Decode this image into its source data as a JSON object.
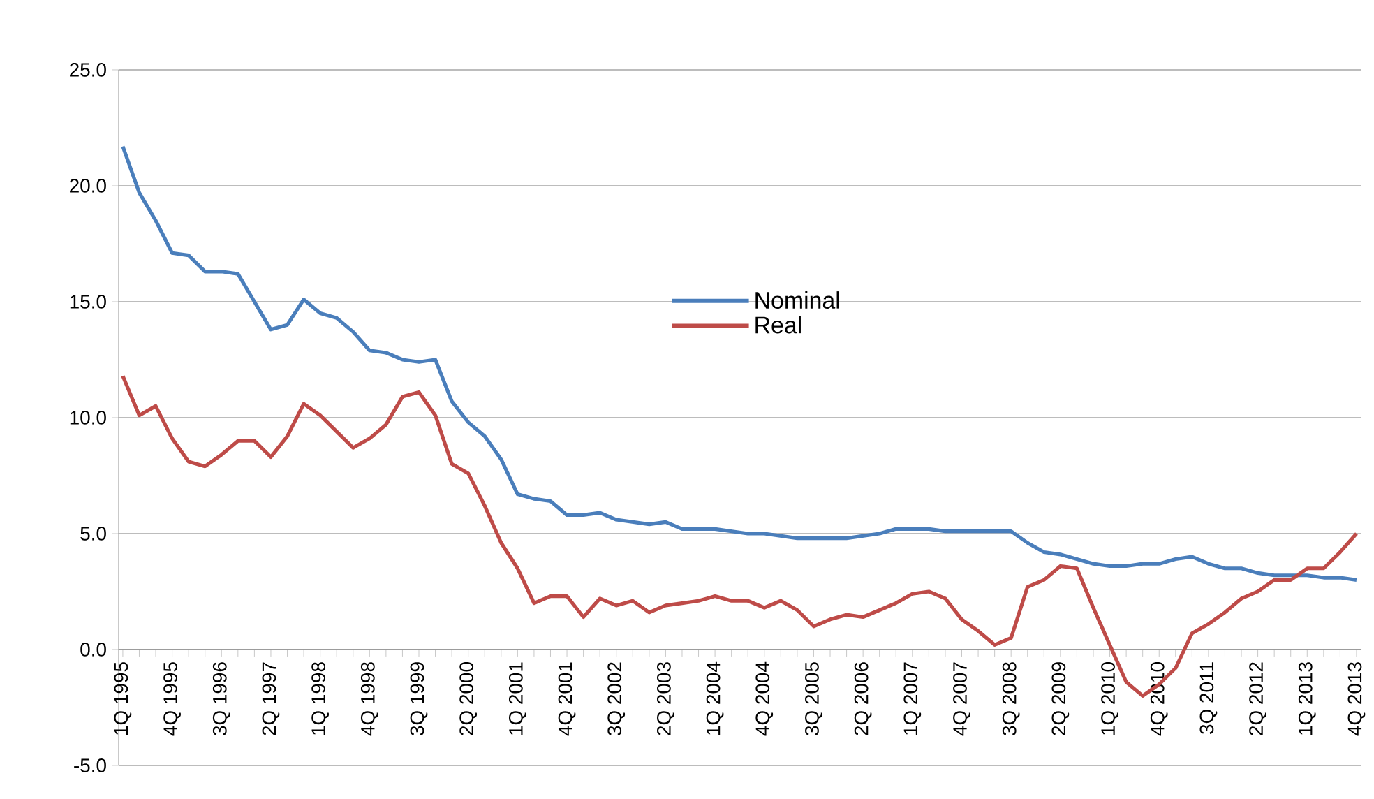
{
  "chart_data": {
    "type": "line",
    "categories": [
      "1Q 1995",
      null,
      null,
      "4Q 1995",
      null,
      null,
      "3Q 1996",
      null,
      null,
      "2Q 1997",
      null,
      null,
      "1Q 1998",
      null,
      null,
      "4Q 1998",
      null,
      null,
      "3Q 1999",
      null,
      null,
      "2Q 2000",
      null,
      null,
      "1Q 2001",
      null,
      null,
      "4Q 2001",
      null,
      null,
      "3Q 2002",
      null,
      null,
      "2Q 2003",
      null,
      null,
      "1Q 2004",
      null,
      null,
      "4Q 2004",
      null,
      null,
      "3Q 2005",
      null,
      null,
      "2Q 2006",
      null,
      null,
      "1Q 2007",
      null,
      null,
      "4Q 2007",
      null,
      null,
      "3Q 2008",
      null,
      null,
      "2Q 2009",
      null,
      null,
      "1Q 2010",
      null,
      null,
      "4Q 2010",
      null,
      null,
      "3Q 2011",
      null,
      null,
      "2Q 2012",
      null,
      null,
      "1Q 2013",
      null,
      null,
      "4Q 2013"
    ],
    "series": [
      {
        "name": "Nominal",
        "color": "#4a7ebb",
        "values": [
          21.7,
          19.7,
          18.5,
          17.1,
          17.0,
          16.3,
          16.3,
          16.2,
          15.0,
          13.8,
          14.0,
          15.1,
          14.5,
          14.3,
          13.7,
          12.9,
          12.8,
          12.5,
          12.4,
          12.5,
          10.7,
          9.8,
          9.2,
          8.2,
          6.7,
          6.5,
          6.4,
          5.8,
          5.8,
          5.9,
          5.6,
          5.5,
          5.4,
          5.5,
          5.2,
          5.2,
          5.2,
          5.1,
          5.0,
          5.0,
          4.9,
          4.8,
          4.8,
          4.8,
          4.8,
          4.9,
          5.0,
          5.2,
          5.2,
          5.2,
          5.1,
          5.1,
          5.1,
          5.1,
          5.1,
          4.6,
          4.2,
          4.1,
          3.9,
          3.7,
          3.6,
          3.6,
          3.7,
          3.7,
          3.9,
          4.0,
          3.7,
          3.5,
          3.5,
          3.3,
          3.2,
          3.2,
          3.2,
          3.1,
          3.1,
          3.0
        ]
      },
      {
        "name": "Real",
        "color": "#be4b48",
        "values": [
          11.8,
          10.1,
          10.5,
          9.1,
          8.1,
          7.9,
          8.4,
          9.0,
          9.0,
          8.3,
          9.2,
          10.6,
          10.1,
          9.4,
          8.7,
          9.1,
          9.7,
          10.9,
          11.1,
          10.1,
          8.0,
          7.6,
          6.2,
          4.6,
          3.5,
          2.0,
          2.3,
          2.3,
          1.4,
          2.2,
          1.9,
          2.1,
          1.6,
          1.9,
          2.0,
          2.1,
          2.3,
          2.1,
          2.1,
          1.8,
          2.1,
          1.7,
          1.0,
          1.3,
          1.5,
          1.4,
          1.7,
          2.0,
          2.4,
          2.5,
          2.2,
          1.3,
          0.8,
          0.2,
          0.5,
          2.7,
          3.0,
          3.6,
          3.5,
          1.8,
          0.2,
          -1.4,
          -2.0,
          -1.5,
          -0.8,
          0.7,
          1.1,
          1.6,
          2.2,
          2.5,
          3.0,
          3.0,
          3.5,
          3.5,
          4.2,
          5.0
        ]
      }
    ],
    "ylim": [
      -5,
      25
    ],
    "yticks": [
      {
        "value": -5,
        "label": "-5.0"
      },
      {
        "value": 0,
        "label": "0.0"
      },
      {
        "value": 5,
        "label": "5.0"
      },
      {
        "value": 10,
        "label": "10.0"
      },
      {
        "value": 15,
        "label": "15.0"
      },
      {
        "value": 20,
        "label": "20.0"
      },
      {
        "value": 25,
        "label": "25.0"
      }
    ],
    "grid": "y",
    "legend": "center",
    "marker": "none",
    "line_style": "solid"
  }
}
